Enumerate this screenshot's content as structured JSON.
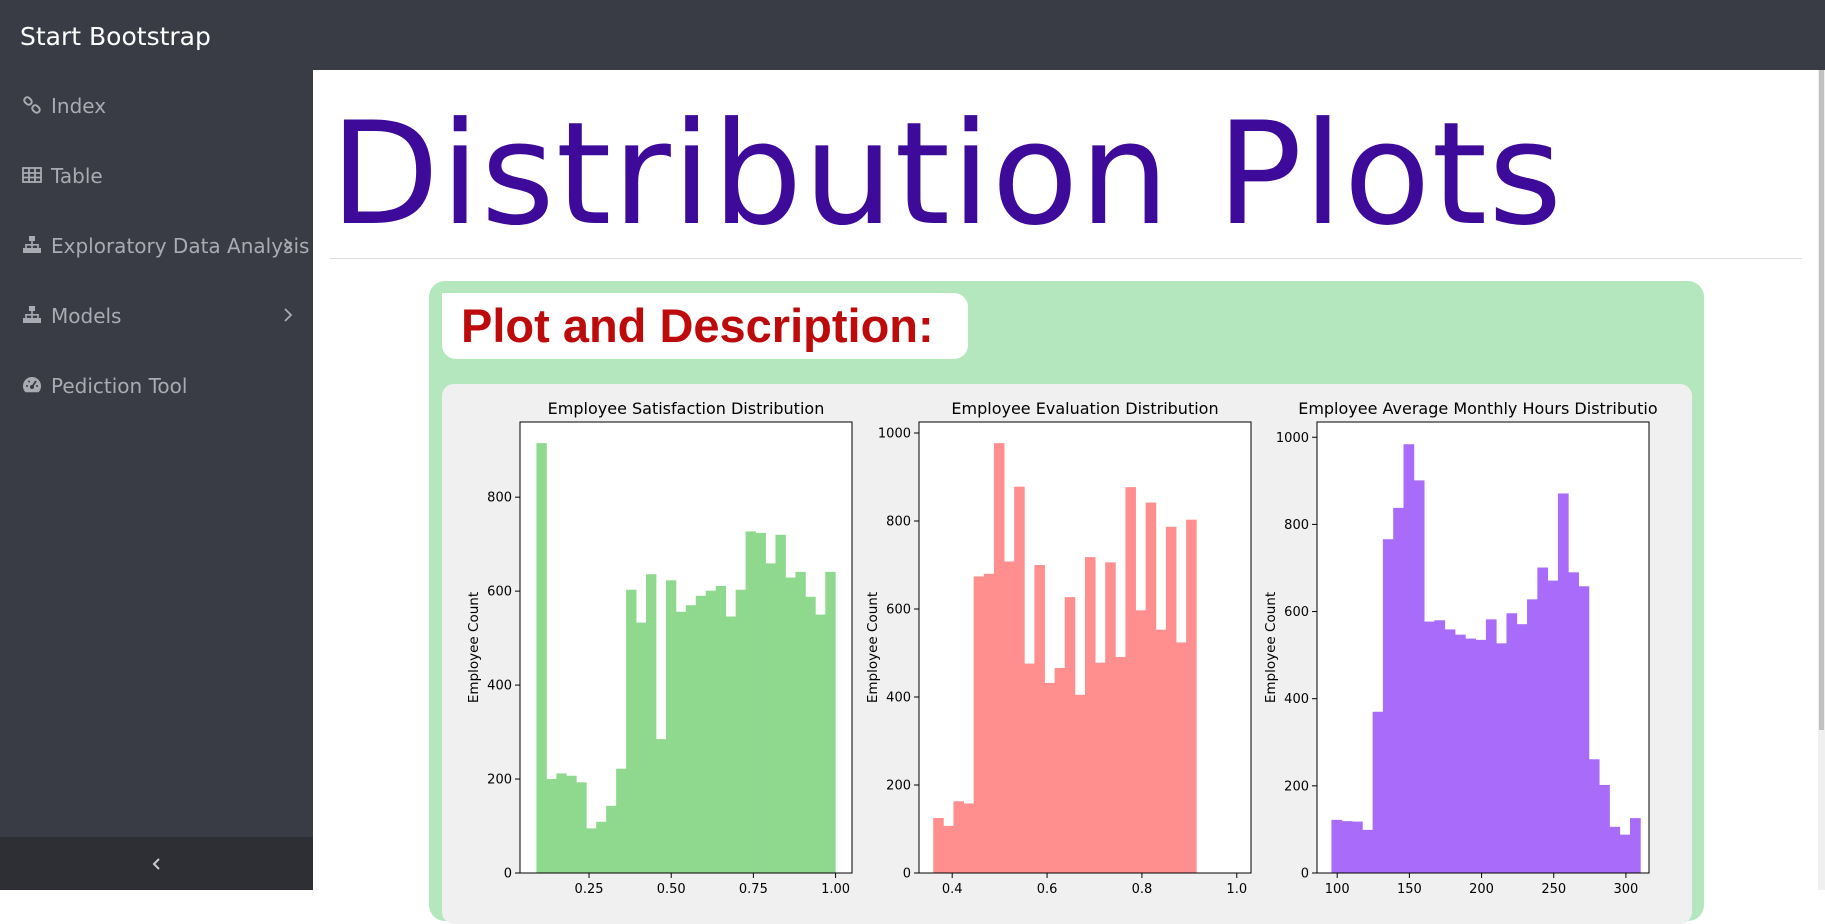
{
  "app": {
    "brand": "Start Bootstrap"
  },
  "sidebar": {
    "items": [
      {
        "label": "Index",
        "icon": "link-icon",
        "has_submenu": false
      },
      {
        "label": "Table",
        "icon": "table-icon",
        "has_submenu": false
      },
      {
        "label": "Exploratory Data Analysis",
        "icon": "sitemap-icon",
        "has_submenu": true
      },
      {
        "label": "Models",
        "icon": "sitemap-icon",
        "has_submenu": true
      },
      {
        "label": "Pediction Tool",
        "icon": "dashboard-icon",
        "has_submenu": false
      }
    ],
    "collapse_icon": "chevron-left-icon"
  },
  "main": {
    "title": "Distribution Plots",
    "card": {
      "heading": "Plot and Description:"
    }
  },
  "colors": {
    "topbar": "#393c45",
    "title": "#3d0a99",
    "card_background": "#b4e7bd",
    "heading_text": "#bd0a0a",
    "satisfaction_bars": "#8fd98f",
    "evaluation_bars": "#ff8f8f",
    "hours_bars": "#a86bfa"
  },
  "chart_data": [
    {
      "type": "bar",
      "title": "Employee Satisfaction Distribution",
      "ylabel": "Employee Count",
      "xlabel": "",
      "color": "#8fd98f",
      "xlim": [
        0.04,
        1.05
      ],
      "ylim": [
        0,
        960
      ],
      "xticks": [
        0.25,
        0.5,
        0.75,
        1.0
      ],
      "xtick_labels": [
        "0.25",
        "0.50",
        "0.75",
        "1.00"
      ],
      "yticks": [
        0,
        200,
        400,
        600,
        800
      ],
      "bin_start": 0.09,
      "bin_width": 0.0303,
      "values": [
        915,
        200,
        212,
        207,
        193,
        95,
        109,
        143,
        222,
        603,
        533,
        636,
        285,
        623,
        556,
        570,
        590,
        601,
        611,
        546,
        603,
        727,
        724,
        659,
        720,
        629,
        641,
        588,
        550,
        641
      ]
    },
    {
      "type": "bar",
      "title": "Employee Evaluation Distribution",
      "ylabel": "Employee Count",
      "xlabel": "",
      "color": "#ff8f8f",
      "xlim": [
        0.33,
        1.03
      ],
      "ylim": [
        0,
        1025
      ],
      "xticks": [
        0.4,
        0.6,
        0.8,
        1.0
      ],
      "xtick_labels": [
        "0.4",
        "0.6",
        "0.8",
        "1.0"
      ],
      "yticks": [
        0,
        200,
        400,
        600,
        800,
        1000
      ],
      "bin_start": 0.36,
      "bin_width": 0.02133,
      "values": [
        125,
        107,
        163,
        158,
        674,
        680,
        977,
        708,
        878,
        476,
        700,
        432,
        466,
        627,
        405,
        718,
        478,
        706,
        491,
        877,
        597,
        842,
        553,
        787,
        524,
        803
      ]
    },
    {
      "type": "bar",
      "title": "Employee Average Monthly Hours Distribution",
      "ylabel": "Employee Count",
      "xlabel": "",
      "color": "#a86bfa",
      "xlim": [
        86,
        316
      ],
      "ylim": [
        0,
        1035
      ],
      "xticks": [
        100,
        150,
        200,
        250,
        300
      ],
      "xtick_labels": [
        "100",
        "150",
        "200",
        "250",
        "300"
      ],
      "yticks": [
        0,
        200,
        400,
        600,
        800,
        1000
      ],
      "bin_start": 96,
      "bin_width": 7.133,
      "values": [
        122,
        119,
        118,
        99,
        370,
        766,
        838,
        984,
        901,
        577,
        580,
        559,
        547,
        538,
        535,
        582,
        527,
        596,
        571,
        628,
        701,
        671,
        871,
        690,
        658,
        261,
        202,
        106,
        88,
        126
      ]
    }
  ]
}
